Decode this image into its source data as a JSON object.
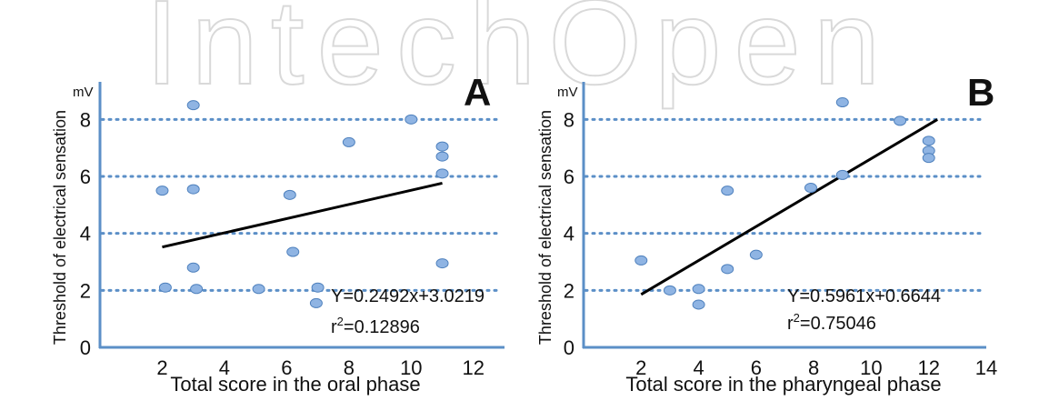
{
  "watermark": "IntechOpen",
  "colors": {
    "axis": "#5b8fc7",
    "grid": "#5b8fc7",
    "point_fill": "#8fb4e3",
    "point_stroke": "#4f81bd",
    "trend": "#000000",
    "text": "#111111",
    "watermark": "#d9d9d9"
  },
  "chart_data": [
    {
      "type": "scatter",
      "panel_label": "A",
      "xlabel": "Total score in the oral phase",
      "ylabel": "Threshold of electrical sensation",
      "unit": "mV",
      "xlim": [
        0,
        13
      ],
      "ylim": [
        0,
        9
      ],
      "xticks": [
        2,
        4,
        6,
        8,
        10,
        12
      ],
      "yticks": [
        0,
        2,
        4,
        6,
        8
      ],
      "grid_y": [
        2,
        4,
        6,
        8
      ],
      "grid_style": "dotted",
      "points": [
        {
          "x": 2,
          "y": 5.5
        },
        {
          "x": 2.1,
          "y": 2.1
        },
        {
          "x": 3,
          "y": 8.5
        },
        {
          "x": 3,
          "y": 5.55
        },
        {
          "x": 3,
          "y": 2.8
        },
        {
          "x": 3.1,
          "y": 2.05
        },
        {
          "x": 5.1,
          "y": 2.05
        },
        {
          "x": 6.1,
          "y": 5.35
        },
        {
          "x": 6.2,
          "y": 3.35
        },
        {
          "x": 7,
          "y": 2.1
        },
        {
          "x": 6.95,
          "y": 1.55
        },
        {
          "x": 8,
          "y": 7.2
        },
        {
          "x": 10,
          "y": 8
        },
        {
          "x": 11,
          "y": 7.05
        },
        {
          "x": 11,
          "y": 6.7
        },
        {
          "x": 11,
          "y": 6.1
        },
        {
          "x": 11,
          "y": 2.95
        }
      ],
      "trendline": {
        "slope": 0.2492,
        "intercept": 3.0219,
        "x_from": 2,
        "x_to": 11
      },
      "equation": "Y=0.2492x+3.0219",
      "r2_label": "r",
      "r2_sup": "2",
      "r2_value": "=0.12896"
    },
    {
      "type": "scatter",
      "panel_label": "B",
      "xlabel": "Total score in the pharyngeal phase",
      "ylabel": "Threshold of electrical sensation",
      "unit": "mV",
      "xlim": [
        0,
        14
      ],
      "ylim": [
        0,
        9
      ],
      "xticks": [
        2,
        4,
        6,
        8,
        10,
        12,
        14
      ],
      "yticks": [
        0,
        2,
        4,
        6,
        8
      ],
      "grid_y": [
        2,
        4,
        6,
        8
      ],
      "grid_style": "dotted",
      "points": [
        {
          "x": 2,
          "y": 3.05
        },
        {
          "x": 3,
          "y": 2
        },
        {
          "x": 4,
          "y": 2.05
        },
        {
          "x": 4,
          "y": 1.5
        },
        {
          "x": 5,
          "y": 5.5
        },
        {
          "x": 5,
          "y": 2.75
        },
        {
          "x": 6,
          "y": 3.25
        },
        {
          "x": 7.9,
          "y": 5.6
        },
        {
          "x": 9,
          "y": 8.6
        },
        {
          "x": 9,
          "y": 6.05
        },
        {
          "x": 11,
          "y": 7.95
        },
        {
          "x": 12,
          "y": 7.25
        },
        {
          "x": 12,
          "y": 6.9
        },
        {
          "x": 12,
          "y": 6.65
        }
      ],
      "trendline": {
        "slope": 0.5961,
        "intercept": 0.6644,
        "x_from": 2,
        "x_to": 12.3
      },
      "equation": "Y=0.5961x+0.6644",
      "r2_label": "r",
      "r2_sup": "2",
      "r2_value": "=0.75046"
    }
  ]
}
